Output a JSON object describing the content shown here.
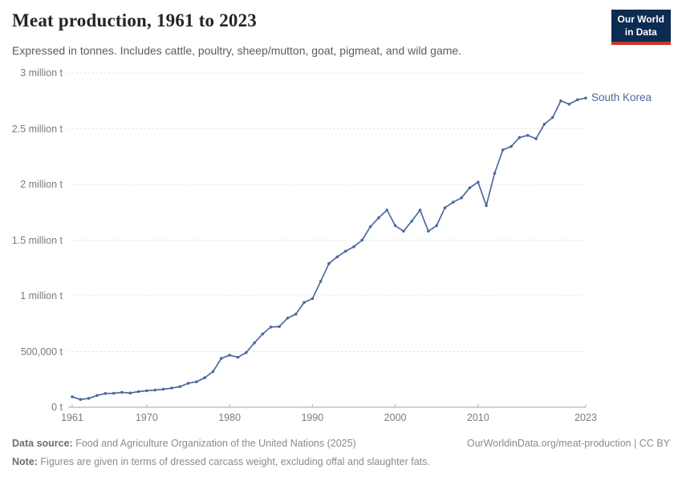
{
  "header": {
    "title": "Meat production, 1961 to 2023",
    "subtitle": "Expressed in tonnes. Includes cattle, poultry, sheep/mutton, goat, pigmeat, and wild game.",
    "logo": {
      "line1": "Our World",
      "line2": "in Data",
      "bg_color": "#0c2b52",
      "accent_color": "#c5392c"
    }
  },
  "chart_data": {
    "type": "line",
    "title": "Meat production, 1961 to 2023",
    "unit": "t",
    "grid": "dashed horizontal",
    "legend_position": "end-of-line label",
    "xlim": [
      1961,
      2023
    ],
    "ylim": [
      0,
      3000000
    ],
    "xticks": [
      1961,
      1970,
      1980,
      1990,
      2000,
      2010,
      2023
    ],
    "yticks": [
      {
        "value": 0,
        "label": "0 t"
      },
      {
        "value": 500000,
        "label": "500,000 t"
      },
      {
        "value": 1000000,
        "label": "1 million t"
      },
      {
        "value": 1500000,
        "label": "1.5 million t"
      },
      {
        "value": 2000000,
        "label": "2 million t"
      },
      {
        "value": 2500000,
        "label": "2.5 million t"
      },
      {
        "value": 3000000,
        "label": "3 million t"
      }
    ],
    "series": [
      {
        "name": "South Korea",
        "color": "#4C6A9C",
        "x": [
          1961,
          1962,
          1963,
          1964,
          1965,
          1966,
          1967,
          1968,
          1969,
          1970,
          1971,
          1972,
          1973,
          1974,
          1975,
          1976,
          1977,
          1978,
          1979,
          1980,
          1981,
          1982,
          1983,
          1984,
          1985,
          1986,
          1987,
          1988,
          1989,
          1990,
          1991,
          1992,
          1993,
          1994,
          1995,
          1996,
          1997,
          1998,
          1999,
          2000,
          2001,
          2002,
          2003,
          2004,
          2005,
          2006,
          2007,
          2008,
          2009,
          2010,
          2011,
          2012,
          2013,
          2014,
          2015,
          2016,
          2017,
          2018,
          2019,
          2020,
          2021,
          2022,
          2023
        ],
        "values": [
          94000,
          70000,
          80000,
          106000,
          124000,
          125000,
          134000,
          128000,
          140000,
          148000,
          154000,
          162000,
          172000,
          185000,
          215000,
          228000,
          265000,
          320000,
          438000,
          467000,
          448000,
          491000,
          578000,
          658000,
          720000,
          724000,
          800000,
          835000,
          940000,
          975000,
          1130000,
          1290000,
          1350000,
          1400000,
          1440000,
          1500000,
          1620000,
          1700000,
          1770000,
          1630000,
          1580000,
          1670000,
          1770000,
          1580000,
          1630000,
          1790000,
          1840000,
          1880000,
          1970000,
          2020000,
          1810000,
          2100000,
          2310000,
          2340000,
          2420000,
          2440000,
          2410000,
          2540000,
          2600000,
          2750000,
          2720000,
          2760000,
          2775000
        ]
      }
    ]
  },
  "footer": {
    "data_source_label": "Data source:",
    "data_source_text": " Food and Agriculture Organization of the United Nations (2025)",
    "citation": "OurWorldinData.org/meat-production | CC BY",
    "note_label": "Note:",
    "note_text": " Figures are given in terms of dressed carcass weight, excluding offal and slaughter fats."
  }
}
